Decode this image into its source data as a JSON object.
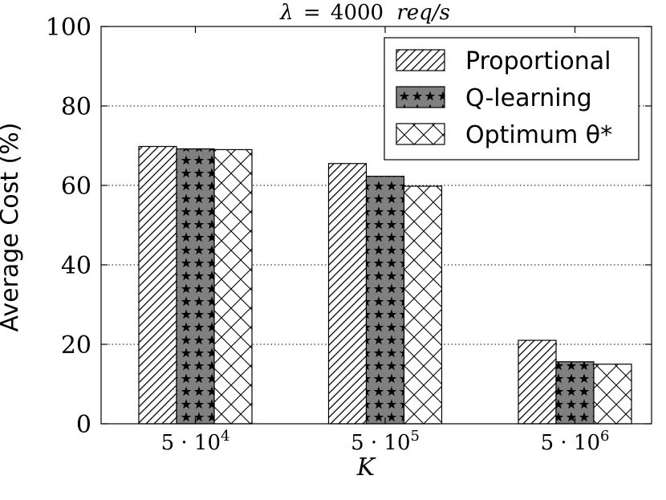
{
  "chart_data": {
    "type": "bar",
    "title": "λ = 4000 req/s",
    "title_parts": {
      "lambda": "λ",
      "eq": "=",
      "num": "4000",
      "unit": "req/s"
    },
    "xlabel": "K",
    "ylabel": "Average Cost (%)",
    "categories": [
      "5·10^4",
      "5·10^5",
      "5·10^6"
    ],
    "category_labels": [
      {
        "base": "5 · 10",
        "exp": "4"
      },
      {
        "base": "5 · 10",
        "exp": "5"
      },
      {
        "base": "5 · 10",
        "exp": "6"
      }
    ],
    "series": [
      {
        "name": "Proportional",
        "pattern": "diagonal",
        "values": [
          69.8,
          65.5,
          21.0
        ]
      },
      {
        "name": "Q-learning",
        "pattern": "stars",
        "values": [
          69.2,
          62.3,
          15.6
        ]
      },
      {
        "name": "Optimum θ*",
        "pattern": "crosshatch",
        "values": [
          69.0,
          59.8,
          15.0
        ]
      }
    ],
    "ylim": [
      0,
      100
    ],
    "yticks": [
      0,
      20,
      40,
      60,
      80,
      100
    ],
    "grid": true,
    "legend_position": "top-right"
  }
}
